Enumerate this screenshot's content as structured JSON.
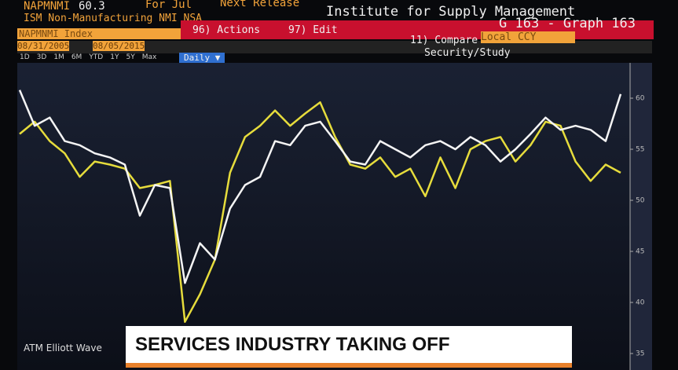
{
  "header": {
    "ticker": "NAPMNMI",
    "last": "60.3",
    "period": "For Jul",
    "next": "Next Release",
    "source": "Institute for Supply Management",
    "name": "ISM Non-Manufacturing NMI NSA",
    "security": "NAPMNMI Index",
    "actions": "96) Actions",
    "edit": "97) Edit",
    "graph": "G 163 - Graph 163",
    "start": "08/31/2005",
    "end": "08/05/2015",
    "compare": "11) Compare",
    "currency": "Local CCY",
    "ranges": [
      "1D",
      "3D",
      "1M",
      "6M",
      "YTD",
      "1Y",
      "5Y",
      "Max"
    ],
    "frequency": "Daily ▼",
    "study": "Security/Study"
  },
  "chyron": {
    "headline": "SERVICES INDUSTRY TAKING OFF",
    "ticker": "ATM Elliott Wave"
  },
  "chart_data": {
    "type": "line",
    "categories": [
      null,
      null,
      null,
      null,
      null,
      null,
      null,
      null,
      null,
      null,
      null,
      null,
      null,
      null,
      null,
      null,
      null,
      null,
      null,
      null,
      null,
      null,
      null,
      null,
      null,
      null,
      null,
      null,
      null,
      null,
      null,
      null,
      null,
      null,
      null,
      null,
      null,
      null,
      null,
      null,
      null
    ],
    "series": [
      {
        "color": "#f4f4f4",
        "values": [
          60.8,
          57.3,
          58.1,
          55.8,
          55.4,
          54.6,
          54.2,
          53.5,
          48.5,
          51.5,
          51.2,
          41.9,
          45.8,
          44.2,
          49.2,
          51.5,
          52.3,
          55.8,
          55.4,
          57.3,
          57.7,
          55.8,
          53.8,
          53.5,
          55.8,
          55.0,
          54.2,
          55.4,
          55.8,
          55.0,
          56.2,
          55.4,
          53.8,
          55.0,
          56.5,
          58.1,
          56.9,
          57.3,
          56.9,
          55.8,
          60.4
        ]
      },
      {
        "color": "#e6dc3c",
        "values": [
          56.5,
          57.7,
          55.8,
          54.6,
          52.3,
          53.8,
          53.5,
          53.1,
          51.2,
          51.5,
          51.9,
          38.1,
          40.8,
          44.2,
          52.7,
          56.2,
          57.3,
          58.8,
          57.3,
          58.5,
          59.6,
          56.2,
          53.5,
          53.1,
          54.2,
          52.3,
          53.1,
          50.4,
          54.2,
          51.2,
          55.0,
          55.8,
          56.2,
          53.8,
          55.4,
          57.7,
          57.3,
          53.8,
          51.9,
          53.5,
          52.7
        ]
      }
    ],
    "ylim": [
      34,
      62
    ],
    "yticks": [
      60,
      55,
      50,
      45,
      40,
      35
    ]
  }
}
